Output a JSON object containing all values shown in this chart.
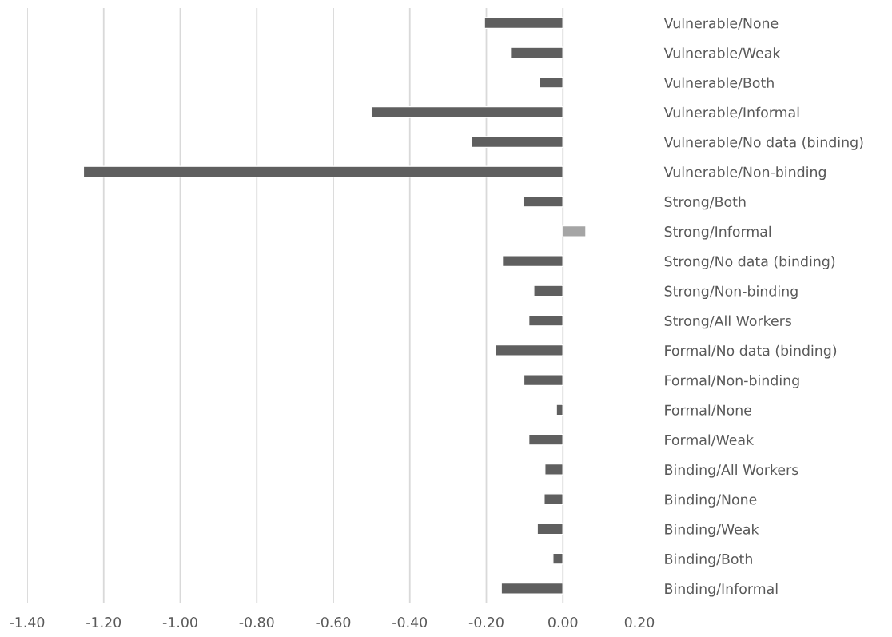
{
  "chart_data": {
    "type": "bar",
    "orientation": "horizontal",
    "categories": [
      "Vulnerable/None",
      "Vulnerable/Weak",
      "Vulnerable/Both",
      "Vulnerable/Informal",
      "Vulnerable/No data (binding)",
      "Vulnerable/Non-binding",
      "Strong/Both",
      "Strong/Informal",
      "Strong/No data (binding)",
      "Strong/Non-binding",
      "Strong/All Workers",
      "Formal/No data (binding)",
      "Formal/Non-binding",
      "Formal/None",
      "Formal/Weak",
      "Binding/All Workers",
      "Binding/None",
      "Binding/Weak",
      "Binding/Both",
      "Binding/Informal"
    ],
    "values": [
      -0.205,
      -0.137,
      -0.062,
      -0.5,
      -0.24,
      -1.253,
      -0.103,
      0.06,
      -0.158,
      -0.076,
      -0.089,
      -0.176,
      -0.102,
      -0.017,
      -0.089,
      -0.047,
      -0.049,
      -0.067,
      -0.026,
      -0.161
    ],
    "colors": [
      "#5f5f5f",
      "#5f5f5f",
      "#5f5f5f",
      "#5f5f5f",
      "#5f5f5f",
      "#5f5f5f",
      "#5f5f5f",
      "#a5a5a5",
      "#5f5f5f",
      "#5f5f5f",
      "#5f5f5f",
      "#5f5f5f",
      "#5f5f5f",
      "#5f5f5f",
      "#5f5f5f",
      "#5f5f5f",
      "#5f5f5f",
      "#5f5f5f",
      "#5f5f5f",
      "#5f5f5f"
    ],
    "xlim": [
      -1.4,
      0.2
    ],
    "xticks": [
      {
        "value": -1.4,
        "label": "-1.40"
      },
      {
        "value": -1.2,
        "label": "-1.20"
      },
      {
        "value": -1.0,
        "label": "-1.00"
      },
      {
        "value": -0.8,
        "label": "-0.80"
      },
      {
        "value": -0.6,
        "label": "-0.60"
      },
      {
        "value": -0.4,
        "label": "-0.40"
      },
      {
        "value": -0.2,
        "label": "-0.20"
      },
      {
        "value": 0.0,
        "label": "0.00"
      },
      {
        "value": 0.2,
        "label": "0.20"
      }
    ],
    "grid": "x",
    "legend": false
  }
}
